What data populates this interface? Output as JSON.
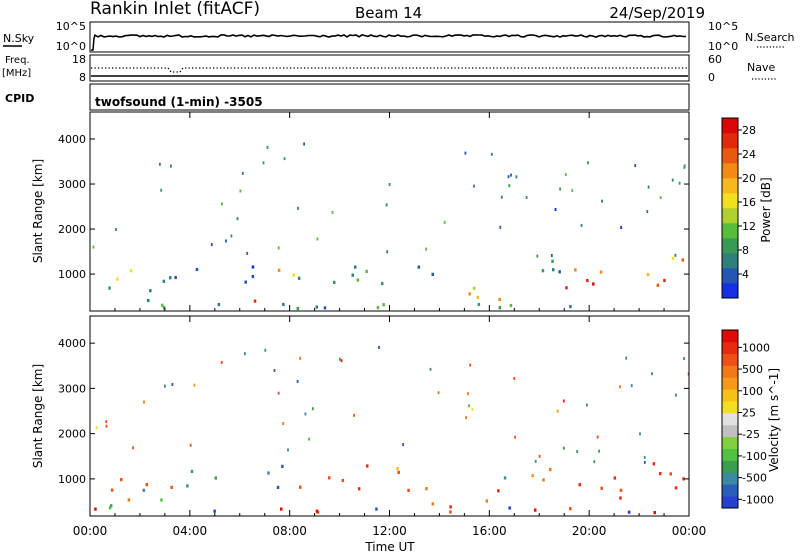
{
  "header": {
    "station": "Rankin Inlet (fitACF)",
    "beam": "Beam 14",
    "date": "24/Sep/2019"
  },
  "status_panels": {
    "nsky": {
      "label": "N.Sky",
      "left_ticks": [
        "10^5",
        "10^0"
      ],
      "right_ticks": [
        "10^5",
        "10^0"
      ],
      "right_label": "N.Search"
    },
    "freq": {
      "label_line1": "Freq.",
      "label_line2": "[MHz]",
      "left_ticks": [
        "18",
        "8"
      ],
      "right_ticks": [
        "60",
        "0"
      ],
      "right_label": "Nave"
    },
    "cpid": {
      "label": "CPID",
      "text": "twofsound (1-min) -3505"
    }
  },
  "time_axis": {
    "ticks": [
      "00:00",
      "04:00",
      "08:00",
      "12:00",
      "16:00",
      "20:00",
      "00:00"
    ],
    "label": "Time UT"
  },
  "chart_data": [
    {
      "type": "heatmap",
      "id": "power",
      "ylabel": "Slant Range [km]",
      "yticks": [
        1000,
        2000,
        3000,
        4000
      ],
      "ylim": [
        180,
        4600
      ],
      "xlim_hours": [
        0,
        24
      ],
      "colorbar": {
        "label": "Power [dB]",
        "tick_labels": [
          "4",
          "8",
          "12",
          "16",
          "20",
          "24",
          "28"
        ],
        "bands": [
          "#1530e0",
          "#2457b5",
          "#2f7f7a",
          "#3a9a55",
          "#58bd3b",
          "#b0d030",
          "#f0e020",
          "#f7b81e",
          "#f08b18",
          "#e85a10",
          "#e12a0b",
          "#d80808"
        ]
      },
      "regions": [
        {
          "t": [
            0.0,
            1.6
          ],
          "r": [
            700,
            1200
          ],
          "v": [
            10,
            20
          ]
        },
        {
          "t": [
            0.3,
            2.8
          ],
          "r": [
            300,
            700
          ],
          "v": [
            4,
            10
          ]
        },
        {
          "t": [
            1.6,
            7.2
          ],
          "r": [
            700,
            1200
          ],
          "v": [
            2,
            6
          ]
        },
        {
          "t": [
            5.2,
            6.6
          ],
          "r": [
            200,
            550
          ],
          "v": [
            20,
            28
          ]
        },
        {
          "t": [
            7.3,
            8.3
          ],
          "r": [
            700,
            1500
          ],
          "v": [
            12,
            22
          ]
        },
        {
          "t": [
            8.3,
            14.0
          ],
          "r": [
            700,
            1300
          ],
          "v": [
            4,
            12
          ]
        },
        {
          "t": [
            13.5,
            16.5
          ],
          "r": [
            300,
            800
          ],
          "v": [
            14,
            26
          ]
        },
        {
          "t": [
            16.5,
            19.0
          ],
          "r": [
            650,
            1250
          ],
          "v": [
            4,
            14
          ]
        },
        {
          "t": [
            19.0,
            23.6
          ],
          "r": [
            450,
            1100
          ],
          "v": [
            20,
            30
          ]
        },
        {
          "t": [
            22.3,
            24.0
          ],
          "r": [
            800,
            1400
          ],
          "v": [
            12,
            24
          ]
        },
        {
          "t": [
            0.0,
            24.0
          ],
          "r": [
            200,
            330
          ],
          "v": [
            2,
            12
          ]
        }
      ]
    },
    {
      "type": "heatmap",
      "id": "velocity",
      "ylabel": "Slant Range [km]",
      "yticks": [
        1000,
        2000,
        3000,
        4000
      ],
      "ylim": [
        180,
        4600
      ],
      "xlim_hours": [
        0,
        24
      ],
      "colorbar": {
        "label": "Velocity [m s^-1]",
        "tick_labels": [
          "1000",
          "500",
          "100",
          "25",
          "-25",
          "-100",
          "-500",
          "-1000"
        ],
        "bands": [
          "#2840d0",
          "#2a5fb8",
          "#3d8aa0",
          "#3a9e50",
          "#52c040",
          "#80d040",
          "#c0c0c0",
          "#e0e0e0",
          "#f0e020",
          "#f6c018",
          "#f59a18",
          "#f07818",
          "#ee5018",
          "#e52a10",
          "#dd0a08"
        ]
      },
      "regions": [
        {
          "t": [
            0.0,
            1.8
          ],
          "r": [
            700,
            1200
          ],
          "v": [
            -300,
            -50
          ]
        },
        {
          "t": [
            0.5,
            3.0
          ],
          "r": [
            300,
            750
          ],
          "v": [
            -40,
            40
          ]
        },
        {
          "t": [
            1.8,
            7.2
          ],
          "r": [
            700,
            1200
          ],
          "v": [
            -150,
            150
          ]
        },
        {
          "t": [
            7.4,
            8.3
          ],
          "r": [
            650,
            1350
          ],
          "v": [
            300,
            1200
          ]
        },
        {
          "t": [
            8.3,
            14.0
          ],
          "r": [
            700,
            1300
          ],
          "v": [
            -200,
            100
          ]
        },
        {
          "t": [
            13.5,
            16.5
          ],
          "r": [
            300,
            800
          ],
          "v": [
            -250,
            -40
          ]
        },
        {
          "t": [
            16.5,
            19.0
          ],
          "r": [
            650,
            1250
          ],
          "v": [
            -150,
            100
          ]
        },
        {
          "t": [
            19.0,
            23.6
          ],
          "r": [
            450,
            1100
          ],
          "v": [
            -450,
            -80
          ]
        },
        {
          "t": [
            22.3,
            24.0
          ],
          "r": [
            800,
            1400
          ],
          "v": [
            -300,
            -50
          ]
        },
        {
          "t": [
            0.0,
            24.0
          ],
          "r": [
            200,
            330
          ],
          "v": [
            -1000,
            1000
          ]
        }
      ]
    }
  ]
}
